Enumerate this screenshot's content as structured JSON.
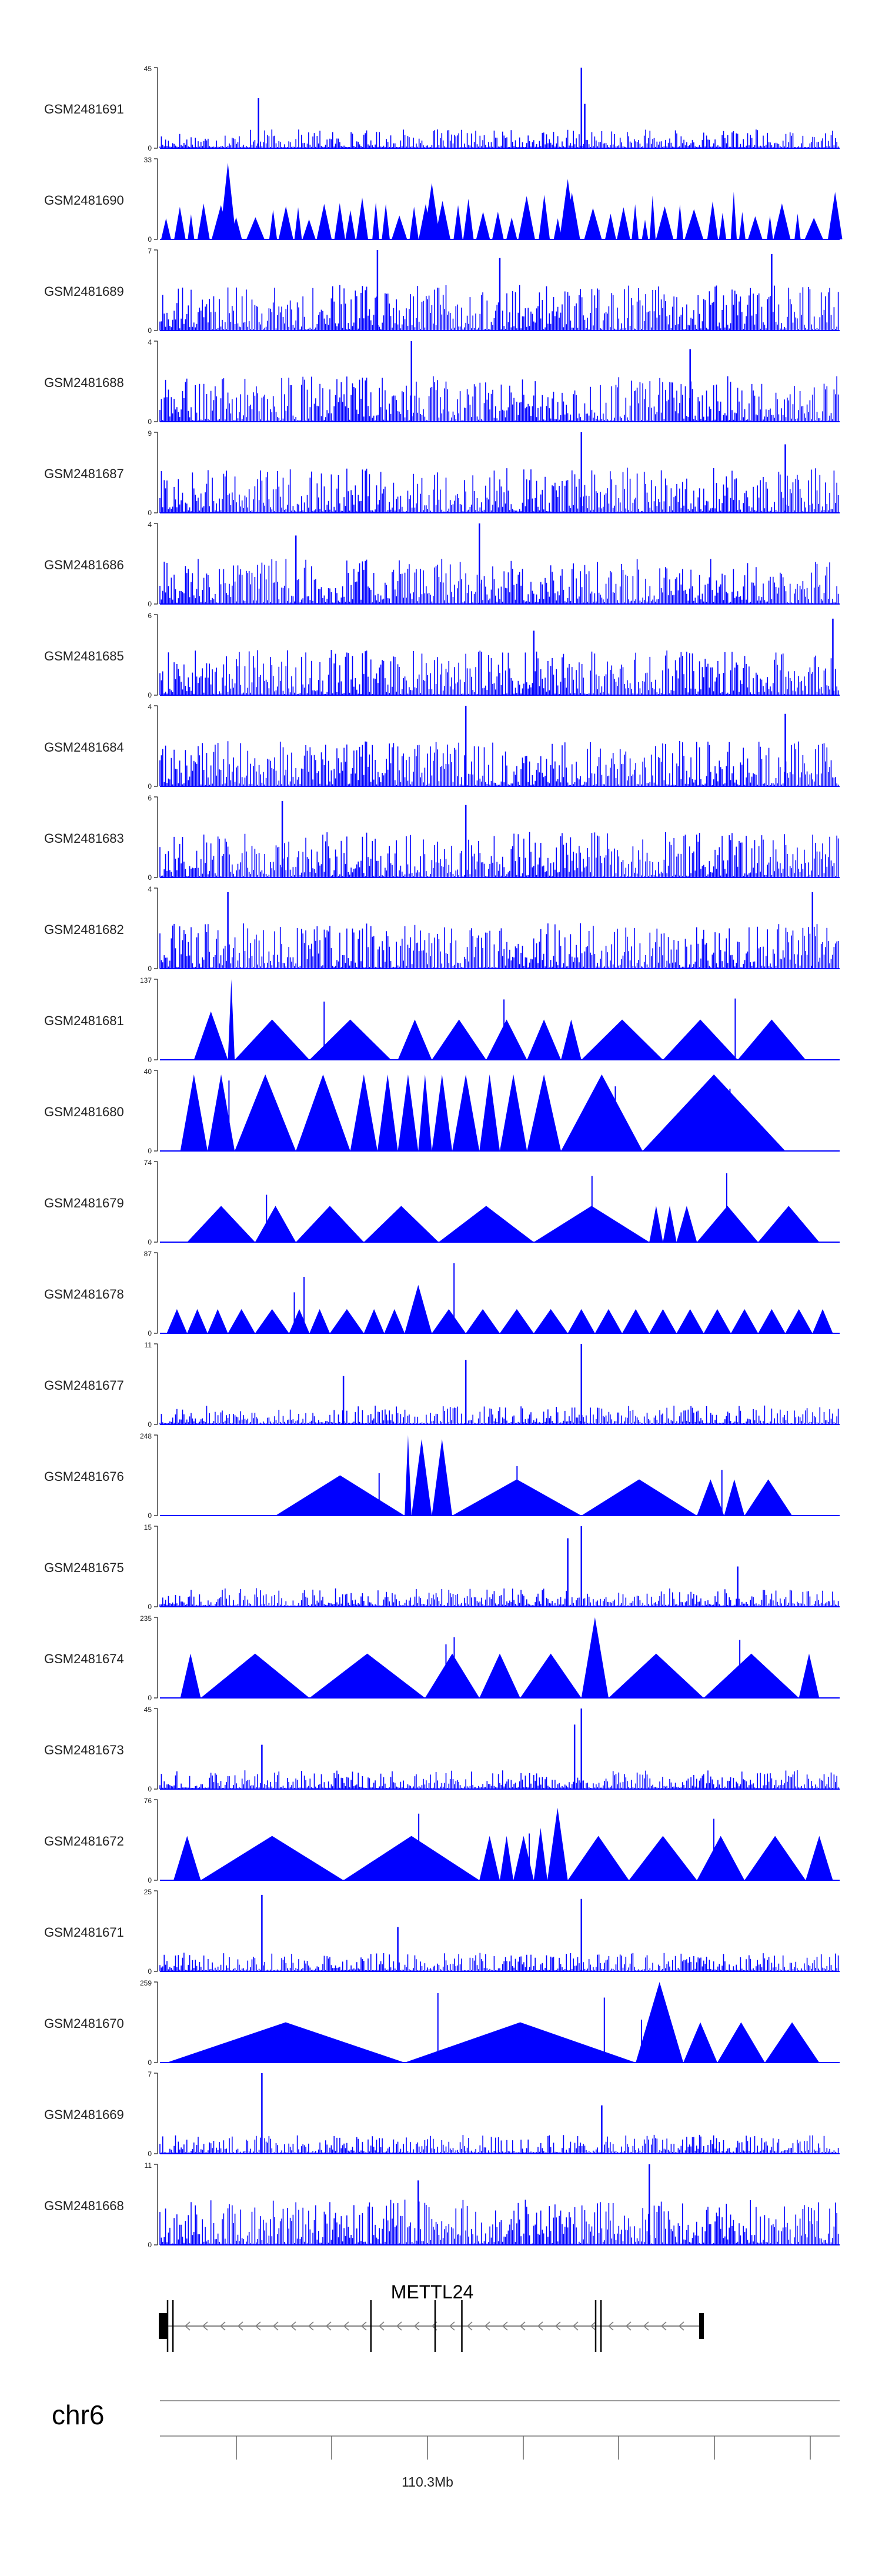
{
  "chart_data": {
    "type": "area",
    "title": "",
    "tracks": [
      {
        "name": "GSM2481691",
        "ymax": 45,
        "pattern": "spiky",
        "peaks": [
          [
            0.145,
            0.62
          ],
          [
            0.62,
            1.0
          ],
          [
            0.625,
            0.55
          ]
        ]
      },
      {
        "name": "GSM2481690",
        "ymax": 33,
        "pattern": "dense-tri",
        "peaks": [
          [
            0.1,
            0.95
          ],
          [
            0.4,
            0.7
          ],
          [
            0.6,
            0.75
          ]
        ]
      },
      {
        "name": "GSM2481689",
        "ymax": 7,
        "pattern": "noise",
        "peaks": [
          [
            0.32,
            1.0
          ],
          [
            0.5,
            0.9
          ],
          [
            0.9,
            0.95
          ]
        ]
      },
      {
        "name": "GSM2481688",
        "ymax": 4,
        "pattern": "noise",
        "peaks": [
          [
            0.37,
            1.0
          ],
          [
            0.78,
            0.9
          ]
        ]
      },
      {
        "name": "GSM2481687",
        "ymax": 9,
        "pattern": "noise",
        "peaks": [
          [
            0.62,
            1.0
          ],
          [
            0.92,
            0.85
          ]
        ]
      },
      {
        "name": "GSM2481686",
        "ymax": 4,
        "pattern": "noise",
        "peaks": [
          [
            0.47,
            1.0
          ],
          [
            0.2,
            0.85
          ]
        ]
      },
      {
        "name": "GSM2481685",
        "ymax": 6,
        "pattern": "noise",
        "peaks": [
          [
            0.99,
            0.95
          ],
          [
            0.55,
            0.8
          ]
        ]
      },
      {
        "name": "GSM2481684",
        "ymax": 4,
        "pattern": "noise",
        "peaks": [
          [
            0.45,
            1.0
          ],
          [
            0.92,
            0.9
          ]
        ]
      },
      {
        "name": "GSM2481683",
        "ymax": 6,
        "pattern": "noise",
        "peaks": [
          [
            0.18,
            0.95
          ],
          [
            0.45,
            0.9
          ]
        ]
      },
      {
        "name": "GSM2481682",
        "ymax": 4,
        "pattern": "noise",
        "peaks": [
          [
            0.1,
            0.95
          ],
          [
            0.96,
            0.95
          ]
        ]
      },
      {
        "name": "GSM2481681",
        "ymax": 137,
        "pattern": "triangles",
        "segs": [
          [
            0.05,
            0.1,
            0.6
          ],
          [
            0.1,
            0.11,
            1.0
          ],
          [
            0.11,
            0.22,
            0.5
          ],
          [
            0.22,
            0.34,
            0.5
          ],
          [
            0.35,
            0.4,
            0.5
          ],
          [
            0.4,
            0.48,
            0.5
          ],
          [
            0.48,
            0.54,
            0.5
          ],
          [
            0.54,
            0.59,
            0.5
          ],
          [
            0.59,
            0.62,
            0.5
          ],
          [
            0.62,
            0.74,
            0.5
          ],
          [
            0.74,
            0.85,
            0.5
          ],
          [
            0.85,
            0.95,
            0.5
          ]
        ]
      },
      {
        "name": "GSM2481680",
        "ymax": 40,
        "pattern": "triangles",
        "segs": [
          [
            0.03,
            0.07,
            0.95
          ],
          [
            0.07,
            0.11,
            0.95
          ],
          [
            0.11,
            0.2,
            0.95
          ],
          [
            0.2,
            0.28,
            0.95
          ],
          [
            0.28,
            0.32,
            0.95
          ],
          [
            0.32,
            0.35,
            0.95
          ],
          [
            0.35,
            0.38,
            0.95
          ],
          [
            0.38,
            0.4,
            0.95
          ],
          [
            0.4,
            0.43,
            0.95
          ],
          [
            0.43,
            0.47,
            0.95
          ],
          [
            0.47,
            0.5,
            0.95
          ],
          [
            0.5,
            0.54,
            0.95
          ],
          [
            0.54,
            0.59,
            0.95
          ],
          [
            0.59,
            0.71,
            0.95
          ],
          [
            0.71,
            0.92,
            0.95
          ]
        ]
      },
      {
        "name": "GSM2481679",
        "ymax": 74,
        "pattern": "triangles",
        "segs": [
          [
            0.04,
            0.14,
            0.45
          ],
          [
            0.14,
            0.2,
            0.45
          ],
          [
            0.2,
            0.3,
            0.45
          ],
          [
            0.3,
            0.41,
            0.45
          ],
          [
            0.41,
            0.55,
            0.45
          ],
          [
            0.55,
            0.72,
            0.45
          ],
          [
            0.72,
            0.74,
            0.45
          ],
          [
            0.74,
            0.76,
            0.45
          ],
          [
            0.76,
            0.79,
            0.45
          ],
          [
            0.79,
            0.88,
            0.45
          ],
          [
            0.88,
            0.97,
            0.45
          ]
        ]
      },
      {
        "name": "GSM2481678",
        "ymax": 87,
        "pattern": "triangles",
        "segs": [
          [
            0.01,
            0.04,
            0.3
          ],
          [
            0.04,
            0.07,
            0.3
          ],
          [
            0.07,
            0.1,
            0.3
          ],
          [
            0.1,
            0.14,
            0.3
          ],
          [
            0.14,
            0.19,
            0.3
          ],
          [
            0.19,
            0.22,
            0.3
          ],
          [
            0.22,
            0.25,
            0.3
          ],
          [
            0.25,
            0.3,
            0.3
          ],
          [
            0.3,
            0.33,
            0.3
          ],
          [
            0.33,
            0.36,
            0.3
          ],
          [
            0.36,
            0.4,
            0.6
          ],
          [
            0.4,
            0.45,
            0.3
          ],
          [
            0.45,
            0.5,
            0.3
          ],
          [
            0.5,
            0.55,
            0.3
          ],
          [
            0.55,
            0.6,
            0.3
          ],
          [
            0.6,
            0.64,
            0.3
          ],
          [
            0.64,
            0.68,
            0.3
          ],
          [
            0.68,
            0.72,
            0.3
          ],
          [
            0.72,
            0.76,
            0.3
          ],
          [
            0.76,
            0.8,
            0.3
          ],
          [
            0.8,
            0.84,
            0.3
          ],
          [
            0.84,
            0.88,
            0.3
          ],
          [
            0.88,
            0.92,
            0.3
          ],
          [
            0.92,
            0.96,
            0.3
          ],
          [
            0.96,
            0.99,
            0.3
          ]
        ]
      },
      {
        "name": "GSM2481677",
        "ymax": 11,
        "pattern": "spiky",
        "peaks": [
          [
            0.62,
            1.0
          ],
          [
            0.45,
            0.8
          ],
          [
            0.27,
            0.6
          ]
        ]
      },
      {
        "name": "GSM2481676",
        "ymax": 248,
        "pattern": "triangles",
        "segs": [
          [
            0.17,
            0.36,
            0.5
          ],
          [
            0.36,
            0.37,
            1.0
          ],
          [
            0.37,
            0.4,
            0.95
          ],
          [
            0.4,
            0.43,
            0.95
          ],
          [
            0.43,
            0.62,
            0.45
          ],
          [
            0.62,
            0.79,
            0.45
          ],
          [
            0.79,
            0.83,
            0.45
          ],
          [
            0.83,
            0.86,
            0.45
          ],
          [
            0.86,
            0.93,
            0.45
          ]
        ]
      },
      {
        "name": "GSM2481675",
        "ymax": 15,
        "pattern": "spiky",
        "peaks": [
          [
            0.62,
            1.0
          ],
          [
            0.6,
            0.85
          ],
          [
            0.85,
            0.5
          ]
        ]
      },
      {
        "name": "GSM2481674",
        "ymax": 235,
        "pattern": "triangles",
        "segs": [
          [
            0.03,
            0.06,
            0.55
          ],
          [
            0.06,
            0.22,
            0.55
          ],
          [
            0.22,
            0.39,
            0.55
          ],
          [
            0.39,
            0.47,
            0.55
          ],
          [
            0.47,
            0.53,
            0.55
          ],
          [
            0.53,
            0.62,
            0.55
          ],
          [
            0.62,
            0.66,
            1.0
          ],
          [
            0.66,
            0.8,
            0.55
          ],
          [
            0.8,
            0.94,
            0.55
          ],
          [
            0.94,
            0.97,
            0.55
          ]
        ]
      },
      {
        "name": "GSM2481673",
        "ymax": 45,
        "pattern": "spiky",
        "peaks": [
          [
            0.62,
            1.0
          ],
          [
            0.61,
            0.8
          ],
          [
            0.15,
            0.55
          ]
        ]
      },
      {
        "name": "GSM2481672",
        "ymax": 76,
        "pattern": "triangles",
        "segs": [
          [
            0.02,
            0.06,
            0.55
          ],
          [
            0.06,
            0.27,
            0.55
          ],
          [
            0.27,
            0.47,
            0.55
          ],
          [
            0.47,
            0.5,
            0.55
          ],
          [
            0.5,
            0.52,
            0.55
          ],
          [
            0.52,
            0.55,
            0.55
          ],
          [
            0.55,
            0.57,
            0.65
          ],
          [
            0.57,
            0.6,
            0.9
          ],
          [
            0.6,
            0.69,
            0.55
          ],
          [
            0.69,
            0.79,
            0.55
          ],
          [
            0.79,
            0.86,
            0.55
          ],
          [
            0.86,
            0.95,
            0.55
          ],
          [
            0.95,
            0.99,
            0.55
          ]
        ]
      },
      {
        "name": "GSM2481671",
        "ymax": 25,
        "pattern": "spiky",
        "peaks": [
          [
            0.62,
            0.9
          ],
          [
            0.15,
            0.95
          ],
          [
            0.35,
            0.55
          ]
        ]
      },
      {
        "name": "GSM2481670",
        "ymax": 259,
        "pattern": "triangles",
        "segs": [
          [
            0.01,
            0.36,
            0.5
          ],
          [
            0.36,
            0.7,
            0.5
          ],
          [
            0.7,
            0.77,
            1.0
          ],
          [
            0.77,
            0.82,
            0.5
          ],
          [
            0.82,
            0.89,
            0.5
          ],
          [
            0.89,
            0.97,
            0.5
          ]
        ]
      },
      {
        "name": "GSM2481669",
        "ymax": 7,
        "pattern": "spiky",
        "peaks": [
          [
            0.15,
            1.0
          ],
          [
            0.65,
            0.6
          ]
        ]
      },
      {
        "name": "GSM2481668",
        "ymax": 11,
        "pattern": "noise",
        "peaks": [
          [
            0.72,
            1.0
          ],
          [
            0.38,
            0.8
          ]
        ]
      }
    ],
    "gene": {
      "name": "METTL24",
      "strand": "-",
      "exon_positions": [
        0.0,
        0.01,
        0.38,
        0.5,
        0.55,
        0.8,
        0.81
      ]
    },
    "chromosome": "chr6",
    "x_tick_label": "110.3Mb",
    "colors": {
      "signal": "#0000ff",
      "axis": "#404040",
      "gene": "#000000",
      "intron": "#808080"
    }
  }
}
